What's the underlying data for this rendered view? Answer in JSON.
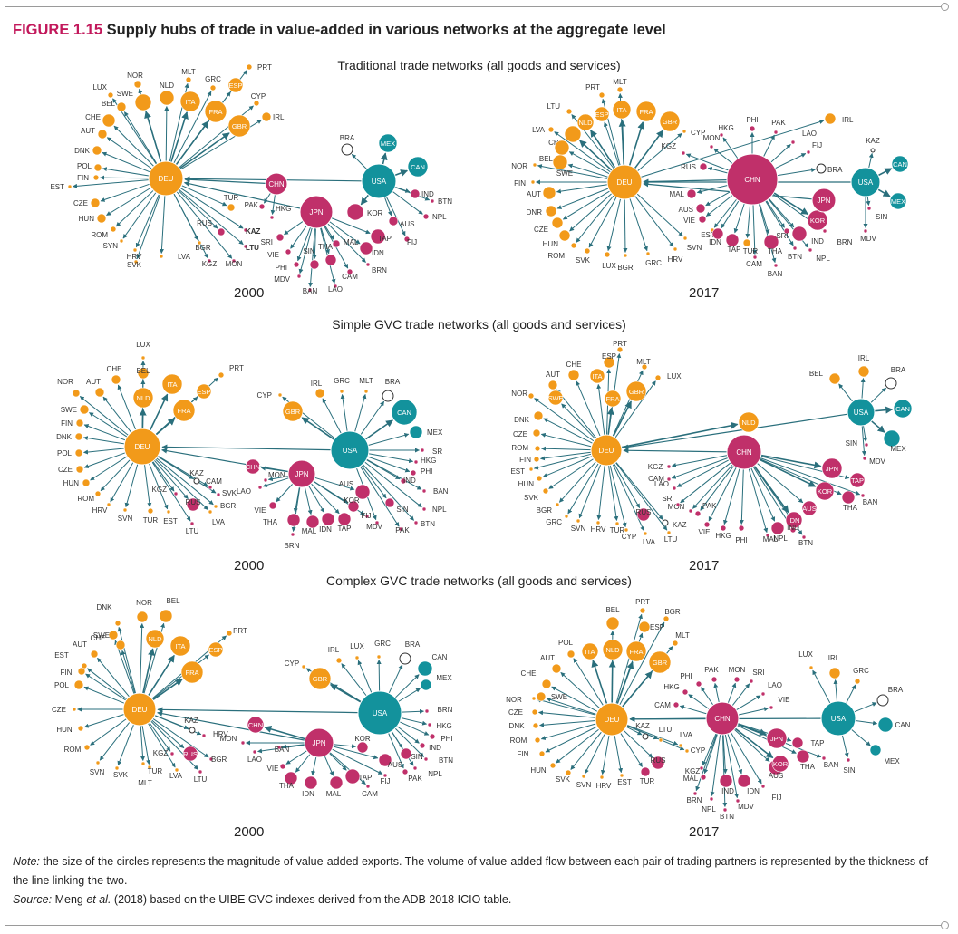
{
  "figure": {
    "label": "FIGURE 1.15",
    "title": "Supply hubs of trade in value-added in various networks at the aggregate level"
  },
  "colors": {
    "orange": "#f29a1a",
    "magenta": "#c0306a",
    "teal": "#13929c",
    "edge": "#2a6f7c",
    "label": "#333333",
    "figure_label": "#c2185b"
  },
  "sections": [
    {
      "title": "Traditional trade networks (all goods and services)",
      "panels": [
        {
          "year": "2000",
          "hubs": [
            {
              "id": "DEU",
              "group": "orange",
              "label": "inside"
            },
            {
              "id": "USA",
              "group": "teal",
              "label": "inside"
            },
            {
              "id": "JPN",
              "group": "magenta",
              "label": "inside"
            },
            {
              "id": "CHN",
              "group": "magenta",
              "label": "inside"
            }
          ],
          "nodes": [
            "LUX",
            "NOR",
            "NLD",
            "MLT",
            "GRC",
            "PRT",
            "ESP",
            "ITA",
            "FRA",
            "CYP",
            "GBR",
            "IRL",
            "SWE",
            "BEL",
            "CHE",
            "AUT",
            "DNK",
            "POL",
            "FIN",
            "EST",
            "CZE",
            "HUN",
            "ROM",
            "SYN",
            "HRV",
            "SVK",
            "LVA",
            "BGR",
            "KGZ",
            "MON",
            "RUS",
            "KAZ",
            "LTU",
            "TUR",
            "PAK",
            "HKG",
            "BRA",
            "MEX",
            "CAN",
            "IND",
            "BTN",
            "NPL",
            "AUS",
            "FIJ",
            "KOR",
            "TAP",
            "IDN",
            "BRN",
            "CAM",
            "LAO",
            "BAN",
            "MAL",
            "THA",
            "SIN",
            "SRI",
            "VIE",
            "PHI",
            "MDV"
          ]
        },
        {
          "year": "2017",
          "hubs": [
            {
              "id": "DEU",
              "group": "orange",
              "label": "inside"
            },
            {
              "id": "CHN",
              "group": "magenta",
              "label": "inside"
            },
            {
              "id": "USA",
              "group": "teal",
              "label": "inside"
            },
            {
              "id": "JPN",
              "group": "magenta",
              "label": "inside"
            }
          ],
          "nodes": [
            "PRT",
            "MLT",
            "ESP",
            "ITA",
            "FRA",
            "NLD",
            "LTU",
            "GBR",
            "LVA",
            "CHE",
            "BEL",
            "NOR",
            "SWE",
            "FIN",
            "AUT",
            "DNR",
            "CZE",
            "HUN",
            "ROM",
            "SVK",
            "LUX",
            "BGR",
            "GRC",
            "HRV",
            "SVN",
            "IRL",
            "KAZ",
            "CAN",
            "MEX",
            "SIN",
            "MDV",
            "CYP",
            "HKG",
            "PHI",
            "PAK",
            "MON",
            "LAO",
            "FIJ",
            "KGZ",
            "RUS",
            "BRA",
            "MAL",
            "AUS",
            "VIE",
            "EST",
            "IDN",
            "TAP",
            "TUR",
            "CAM",
            "THA",
            "BAN",
            "BTN",
            "NPL",
            "SRI",
            "IND",
            "BRN",
            "KOR"
          ]
        }
      ]
    },
    {
      "title": "Simple GVC trade networks (all goods and services)",
      "panels": [
        {
          "year": "2000",
          "hubs": [
            {
              "id": "DEU",
              "group": "orange",
              "label": "inside"
            },
            {
              "id": "USA",
              "group": "teal",
              "label": "inside"
            },
            {
              "id": "JPN",
              "group": "magenta",
              "label": "inside"
            }
          ],
          "nodes": [
            "LUX",
            "BEL",
            "ITA",
            "CHE",
            "NLD",
            "ESP",
            "PRT",
            "NOR",
            "AUT",
            "FRA",
            "SWE",
            "FIN",
            "DNK",
            "POL",
            "CZE",
            "HUN",
            "ROM",
            "HRV",
            "SVN",
            "TUR",
            "EST",
            "LTU",
            "LVA",
            "KGZ",
            "RUS",
            "KAZ",
            "CAM",
            "SVK",
            "BGR",
            "CYP",
            "GBR",
            "IRL",
            "GRC",
            "MLT",
            "BRA",
            "CAN",
            "MEX",
            "SR",
            "HKG",
            "PHI",
            "IND",
            "BAN",
            "NPL",
            "BTN",
            "PAK",
            "SIN",
            "MDV",
            "FIJ",
            "KOR",
            "AUS",
            "TAP",
            "IDN",
            "MAL",
            "BRN",
            "THA",
            "VIE",
            "LAO",
            "CHN",
            "MON"
          ]
        },
        {
          "year": "2017",
          "hubs": [
            {
              "id": "DEU",
              "group": "orange",
              "label": "inside"
            },
            {
              "id": "CHN",
              "group": "magenta",
              "label": "inside"
            },
            {
              "id": "USA",
              "group": "teal",
              "label": "inside"
            }
          ],
          "nodes": [
            "PRT",
            "ESP",
            "MLT",
            "CHE",
            "AUT",
            "ITA",
            "LUX",
            "NOR",
            "SWE",
            "FRA",
            "GBR",
            "DNK",
            "CZE",
            "ROM",
            "FIN",
            "EST",
            "HUN",
            "SVK",
            "BGR",
            "GRC",
            "SVN",
            "HRV",
            "TUR",
            "CYP",
            "LVA",
            "LTU",
            "RUS",
            "KAZ",
            "NLD",
            "BEL",
            "IRL",
            "BRA",
            "CAN",
            "MEX",
            "SIN",
            "MDV",
            "JPN",
            "TAP",
            "KOR",
            "THA",
            "BAN",
            "AUS",
            "IDN",
            "IND",
            "BTN",
            "NPL",
            "MAL",
            "PHI",
            "HKG",
            "VIE",
            "PAK",
            "MON",
            "SRI",
            "LAO",
            "CAM",
            "KGZ"
          ]
        }
      ]
    },
    {
      "title": "Complex GVC trade networks (all goods and services)",
      "panels": [
        {
          "year": "2000",
          "hubs": [
            {
              "id": "DEU",
              "group": "orange",
              "label": "inside"
            },
            {
              "id": "USA",
              "group": "teal",
              "label": "inside"
            },
            {
              "id": "JPN",
              "group": "magenta",
              "label": "inside"
            }
          ],
          "nodes": [
            "DNK",
            "NOR",
            "BEL",
            "SWE",
            "CHE",
            "NLD",
            "ITA",
            "ESP",
            "PRT",
            "AUT",
            "EST",
            "FIN",
            "FRA",
            "POL",
            "CZE",
            "HUN",
            "ROM",
            "SVN",
            "SVK",
            "MLT",
            "TUR",
            "LVA",
            "LTU",
            "KGZ",
            "RUS",
            "KAZ",
            "HRV",
            "BGR",
            "CHN",
            "MON",
            "LAO",
            "BAN",
            "VIE",
            "CYP",
            "GBR",
            "IRL",
            "LUX",
            "GRC",
            "BRA",
            "CAN",
            "MEX",
            "BRN",
            "HKG",
            "PHI",
            "IND",
            "BTN",
            "NPL",
            "PAK",
            "SIN",
            "AUS",
            "KOR",
            "TAP",
            "FIJ",
            "CAM",
            "MAL",
            "IDN",
            "THA"
          ]
        },
        {
          "year": "2017",
          "hubs": [
            {
              "id": "DEU",
              "group": "orange",
              "label": "inside"
            },
            {
              "id": "CHN",
              "group": "magenta",
              "label": "inside"
            },
            {
              "id": "USA",
              "group": "teal",
              "label": "inside"
            }
          ],
          "nodes": [
            "PRT",
            "BGR",
            "BEL",
            "ESP",
            "MLT",
            "POL",
            "ITA",
            "NLD",
            "FRA",
            "GBR",
            "AUT",
            "CHE",
            "NOR",
            "SWE",
            "CZE",
            "DNK",
            "ROM",
            "FIN",
            "HUN",
            "SVK",
            "SVN",
            "HRV",
            "EST",
            "TUR",
            "KAZ",
            "LTU",
            "LVA",
            "CYP",
            "RUS",
            "PHI",
            "PAK",
            "MON",
            "SRI",
            "LAO",
            "VIE",
            "HKG",
            "CAM",
            "KGZ",
            "MAL",
            "BRN",
            "NPL",
            "IND",
            "MDV",
            "BTN",
            "IDN",
            "FIJ",
            "AUS",
            "JPN",
            "KOR",
            "TAP",
            "THA",
            "BAN",
            "SIN",
            "LUX",
            "IRL",
            "GRC",
            "BRA",
            "CAN",
            "MEX"
          ]
        }
      ]
    }
  ],
  "note": {
    "label": "Note:",
    "text": " the size of the circles represents the magnitude of value-added exports. The volume of value-added flow between each pair of trading partners is represented by the thickness of the line linking the two."
  },
  "source": {
    "label": "Source:",
    "author": "Meng ",
    "etal": "et al.",
    "text": " (2018) based on the UIBE GVC indexes derived from the ADB 2018 ICIO table."
  }
}
